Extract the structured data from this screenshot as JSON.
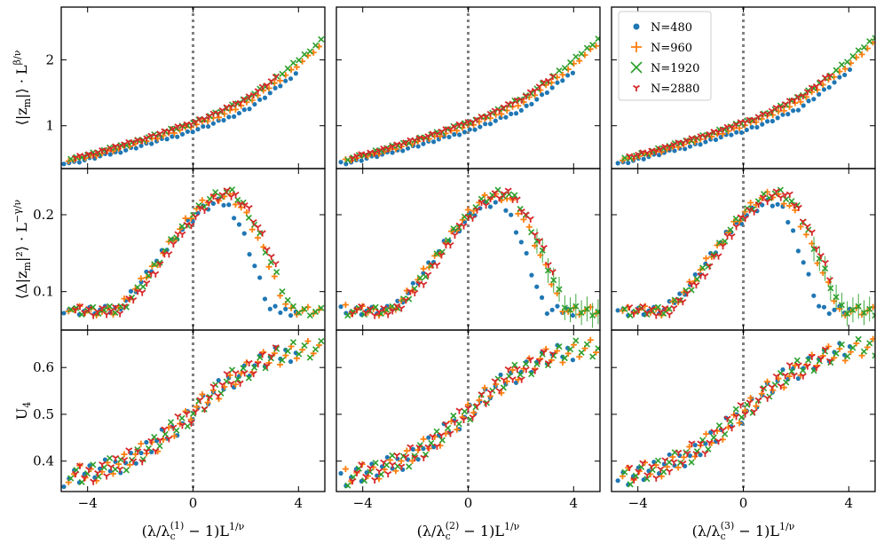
{
  "legend": [
    {
      "label": "N=480",
      "color": "#1f77b4",
      "marker": "dot"
    },
    {
      "label": "N=960",
      "color": "#ff7f0e",
      "marker": "plus"
    },
    {
      "label": "N=1920",
      "color": "#2ca02c",
      "marker": "x"
    },
    {
      "label": "N=2880",
      "color": "#d62728",
      "marker": "tri"
    }
  ],
  "columns": [
    {
      "xlabel": "(λ/λ_c^(1) − 1)L^(1/ν)",
      "xlabel_main": "(λ/λ",
      "xlabel_sub": "c",
      "xlabel_sup": "(1)",
      "xlabel_tail": " − 1)L",
      "xlabel_exp": "1/ν"
    },
    {
      "xlabel": "(λ/λ_c^(2) − 1)L^(1/ν)",
      "xlabel_main": "(λ/λ",
      "xlabel_sub": "c",
      "xlabel_sup": "(2)",
      "xlabel_tail": " − 1)L",
      "xlabel_exp": "1/ν"
    },
    {
      "xlabel": "(λ/λ_c^(3) − 1)L^(1/ν)",
      "xlabel_main": "(λ/λ",
      "xlabel_sub": "c",
      "xlabel_sup": "(3)",
      "xlabel_tail": " − 1)L",
      "xlabel_exp": "1/ν"
    }
  ],
  "rows": [
    {
      "ylabel": "⟨|z_m|⟩ · L^(β/ν)",
      "ylabel_main": "⟨|z",
      "ylabel_sub": "m",
      "ylabel_tail": "|⟩ · L",
      "ylabel_exp": "β/ν"
    },
    {
      "ylabel": "⟨Δ|z_m|²⟩ · L^(−γ/ν)",
      "ylabel_main": "⟨Δ|z",
      "ylabel_sub": "m",
      "ylabel_tail": "|²⟩ · L",
      "ylabel_exp": "−γ/ν"
    },
    {
      "ylabel": "U_4",
      "ylabel_main": "U",
      "ylabel_sub": "4",
      "ylabel_tail": "",
      "ylabel_exp": ""
    }
  ],
  "chart_data": {
    "type": "scatter",
    "grid": false,
    "legend_position": "top-left of top-right panel",
    "xlim": [
      -5,
      5
    ],
    "xticks": [
      -4,
      0,
      4
    ],
    "xtick_labels": [
      "−4",
      "0",
      "4"
    ],
    "vline_x": 0,
    "row_ylims": [
      [
        0.35,
        2.8
      ],
      [
        0.05,
        0.26
      ],
      [
        0.335,
        0.68
      ]
    ],
    "row_yticks": [
      [
        1,
        2
      ],
      [
        0.1,
        0.2
      ],
      [
        0.4,
        0.5,
        0.6
      ]
    ],
    "row_ytick_labels": [
      [
        "1",
        "2"
      ],
      [
        "0.1",
        "0.2"
      ],
      [
        "0.4",
        "0.5",
        "0.6"
      ]
    ],
    "row_curves": [
      {
        "kind": "magnetization",
        "left_value": 0.52,
        "center_value": 1.05,
        "slope_right": 0.34
      },
      {
        "kind": "susceptibility",
        "left_value": 0.077,
        "center_value": 0.205,
        "peak_x": 1.1,
        "peak_values": [
          0.215,
          0.225,
          0.228,
          0.226
        ]
      },
      {
        "kind": "binder",
        "left_value": 0.36,
        "center_value": 0.48,
        "right_value": 0.652
      }
    ],
    "series": [
      {
        "name": "N=480",
        "x_range": [
          -4.9,
          3.9
        ],
        "tail": [
          0.88,
          1.0,
          1.0
        ]
      },
      {
        "name": "N=960",
        "x_range": [
          -4.7,
          4.8
        ],
        "tail": [
          0.95,
          1.0,
          1.0
        ]
      },
      {
        "name": "N=1920",
        "x_range": [
          -4.6,
          4.9
        ],
        "tail": [
          1.0,
          1.0,
          1.0
        ]
      },
      {
        "name": "N=2880",
        "x_range": [
          -4.4,
          3.2
        ],
        "tail": [
          1.0,
          1.0,
          1.0
        ]
      }
    ]
  }
}
